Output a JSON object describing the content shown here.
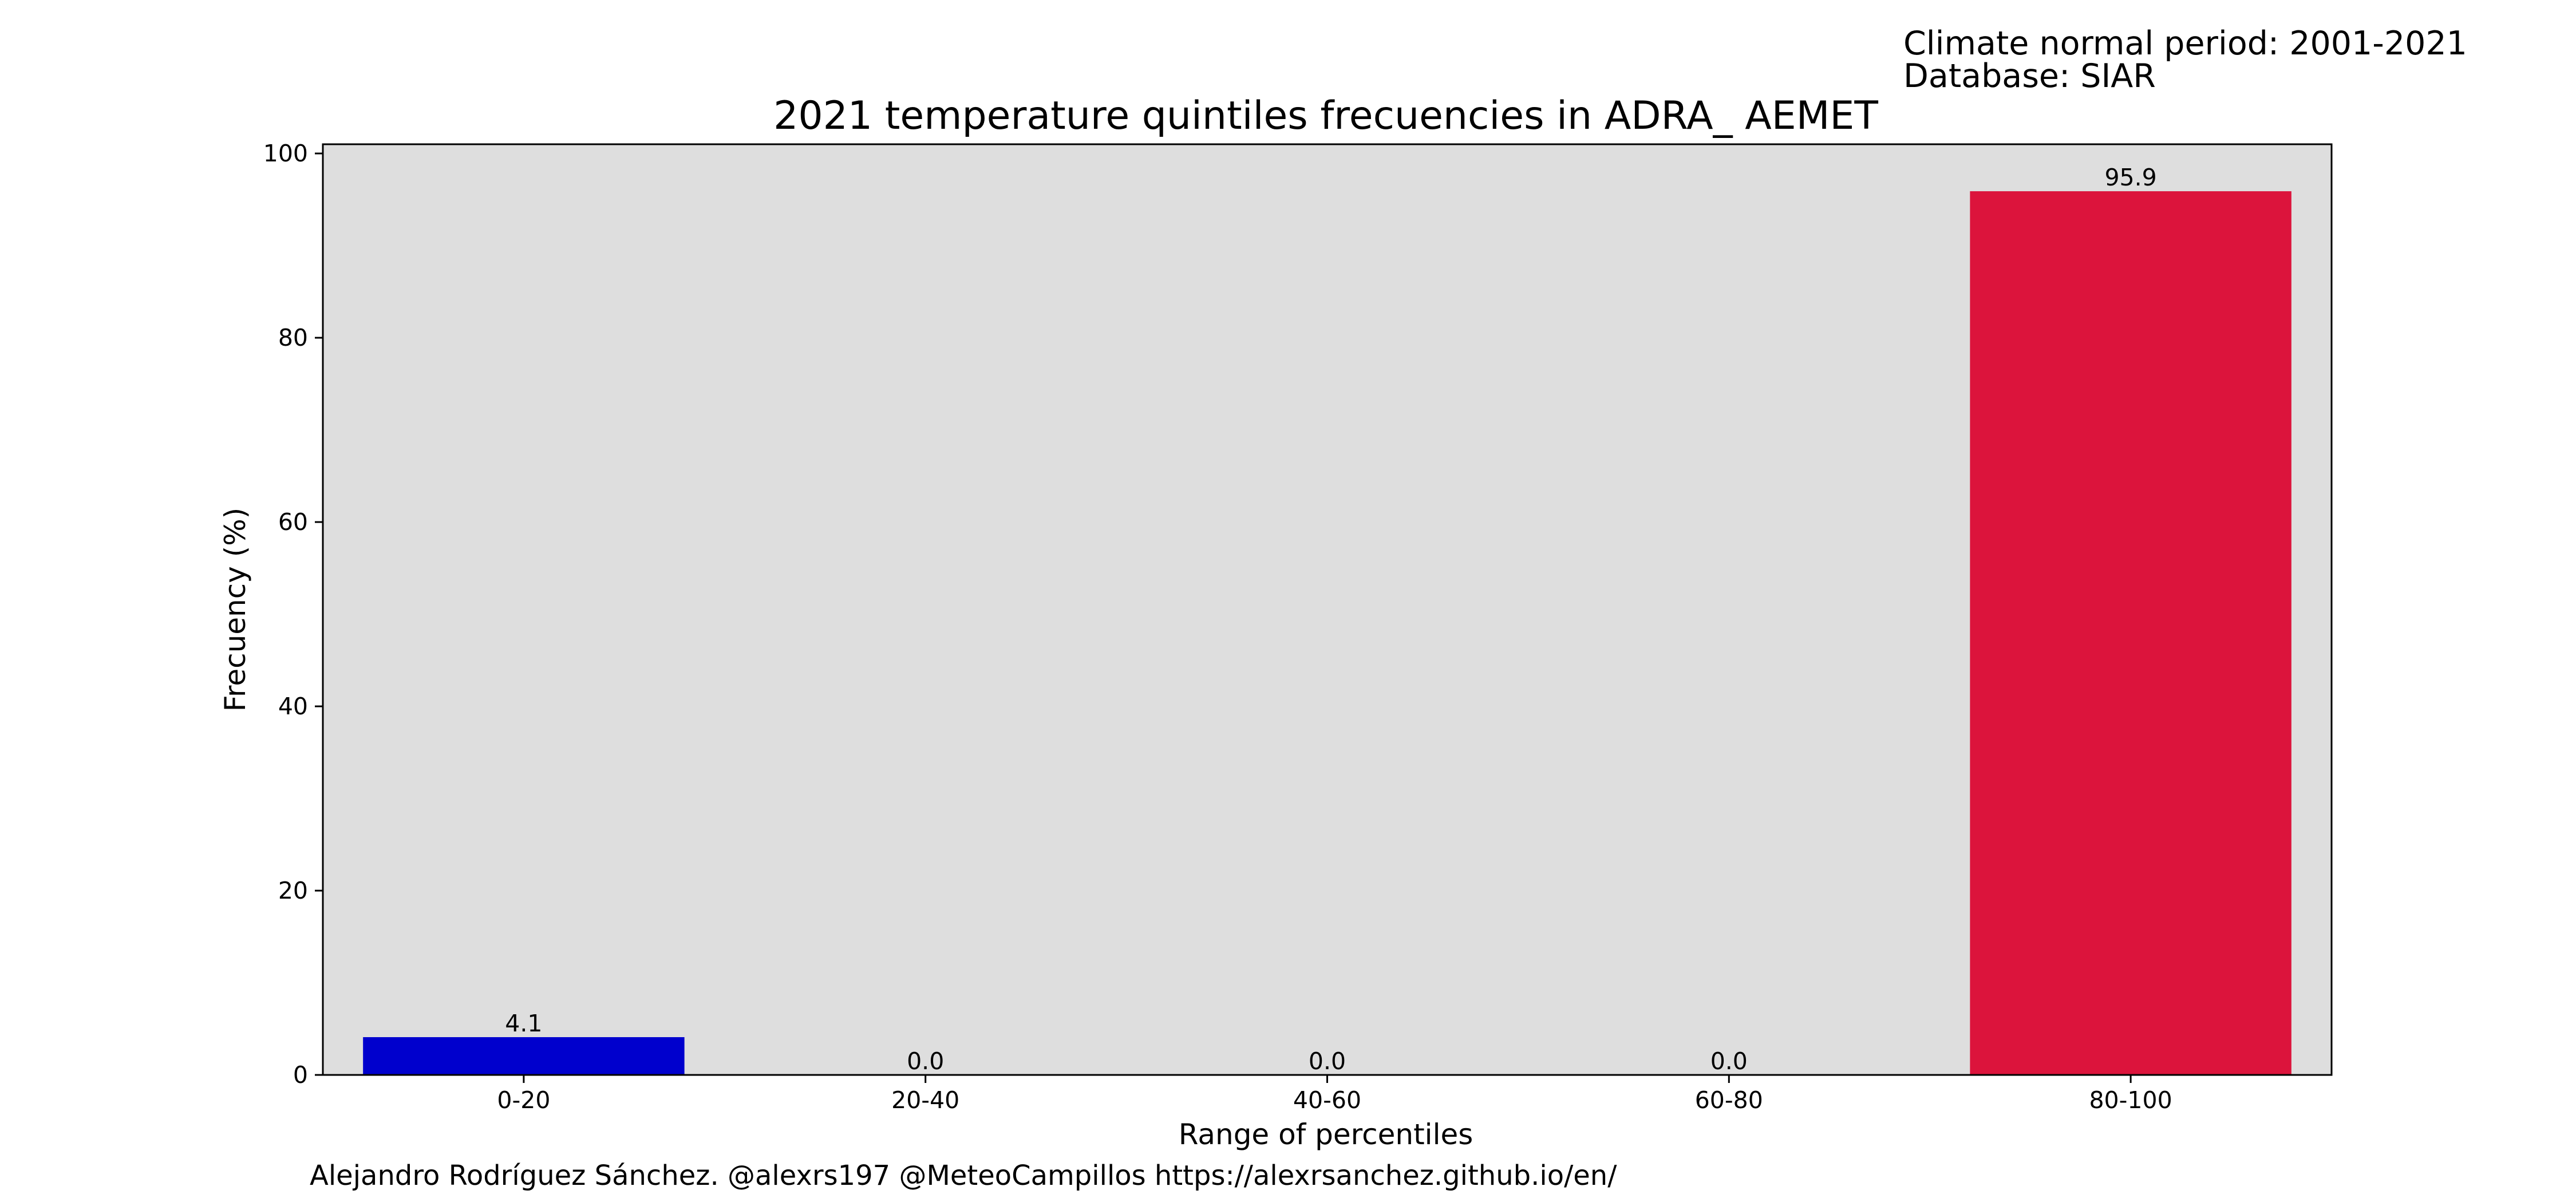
{
  "chart_data": {
    "type": "bar",
    "title": "2021 temperature quintiles frecuencies in ADRA_ AEMET",
    "xlabel": "Range of percentiles",
    "ylabel": "Frecuency (%)",
    "categories": [
      "0-20",
      "20-40",
      "40-60",
      "60-80",
      "80-100"
    ],
    "values": [
      4.1,
      0.0,
      0.0,
      0.0,
      95.9
    ],
    "value_labels": [
      "4.1",
      "0.0",
      "0.0",
      "0.0",
      "95.9"
    ],
    "bar_colors": [
      "#0000cd",
      "#3aa0ff",
      "#9acd32",
      "#ffa500",
      "#dc143c"
    ],
    "ylim": [
      0,
      101
    ],
    "yticks": [
      0,
      20,
      40,
      60,
      80,
      100
    ],
    "ytick_labels": [
      "0",
      "20",
      "40",
      "60",
      "80",
      "100"
    ],
    "grid": false,
    "plot_background": "#dedede"
  },
  "info": {
    "period": "Climate normal period: 2001-2021",
    "database": "Database: SIAR"
  },
  "footer": {
    "credit": "Alejandro Rodríguez Sánchez. @alexrs197 @MeteoCampillos   https://alexrsanchez.github.io/en/"
  }
}
